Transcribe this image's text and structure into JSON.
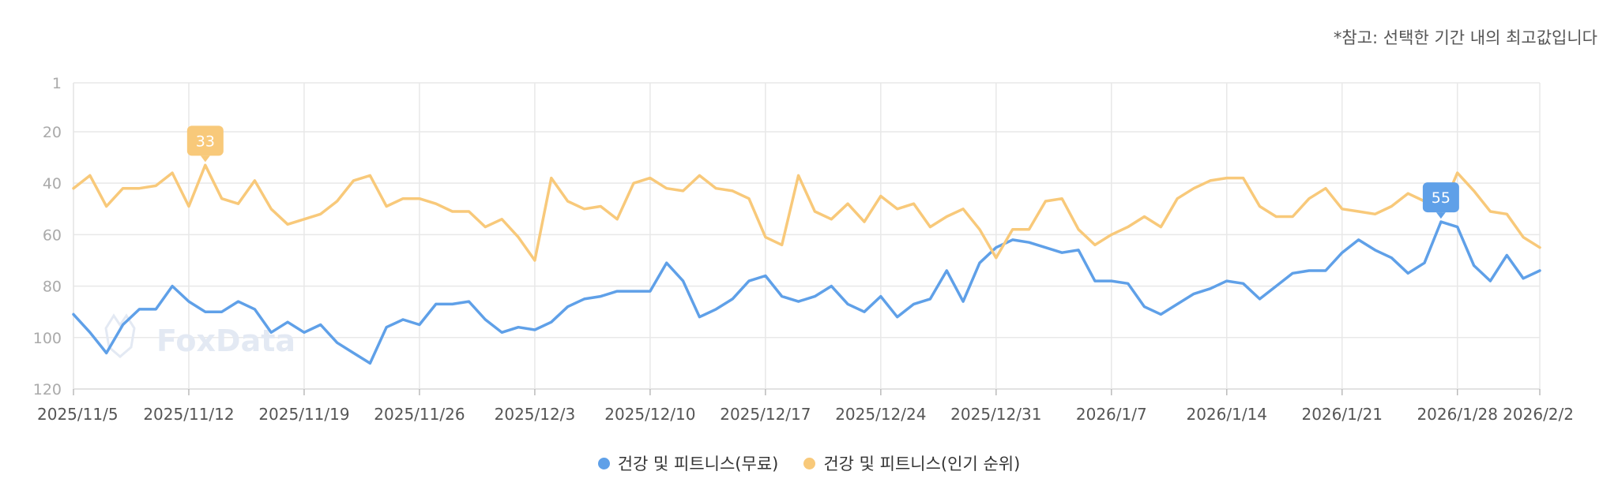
{
  "note": "*참고: 선택한 기간 내의 최고값입니다",
  "watermark": "FoxData",
  "colors": {
    "free": "#5fa0e8",
    "popular": "#f8c97a",
    "grid": "#e8e8e8"
  },
  "chart_data": {
    "type": "line",
    "title": "",
    "xlabel": "",
    "ylabel": "",
    "y_reversed": true,
    "ylim": [
      1,
      120
    ],
    "y_ticks": [
      1,
      20,
      40,
      60,
      80,
      100,
      120
    ],
    "x_ticks": [
      "2025/11/5",
      "2025/11/12",
      "2025/11/19",
      "2025/11/26",
      "2025/12/3",
      "2025/12/10",
      "2025/12/17",
      "2025/12/24",
      "2025/12/31",
      "2026/1/7",
      "2026/1/14",
      "2026/1/21",
      "2026/1/28",
      "2026/2/2"
    ],
    "x_start": "2025/11/5",
    "x_end": "2026/2/2",
    "grid": true,
    "legend_position": "bottom",
    "series": [
      {
        "name": "건강 및 피트니스(무료)",
        "color": "#5fa0e8",
        "peak_label": "55",
        "peak_index": 83,
        "values": [
          91,
          98,
          106,
          95,
          89,
          89,
          80,
          86,
          90,
          90,
          86,
          89,
          98,
          94,
          98,
          95,
          102,
          106,
          110,
          96,
          93,
          95,
          87,
          87,
          86,
          93,
          98,
          96,
          97,
          94,
          88,
          85,
          84,
          82,
          82,
          82,
          71,
          78,
          92,
          89,
          85,
          78,
          76,
          84,
          86,
          84,
          80,
          87,
          90,
          84,
          92,
          87,
          85,
          74,
          86,
          71,
          65,
          62,
          63,
          65,
          67,
          66,
          78,
          78,
          79,
          88,
          91,
          87,
          83,
          81,
          78,
          79,
          85,
          80,
          75,
          74,
          74,
          67,
          62,
          66,
          69,
          75,
          71,
          55,
          57,
          72,
          78,
          68,
          77,
          74
        ]
      },
      {
        "name": "건강 및 피트니스(인기 순위)",
        "color": "#f8c97a",
        "peak_label": "33",
        "peak_index": 8,
        "values": [
          42,
          37,
          49,
          42,
          42,
          41,
          36,
          49,
          33,
          46,
          48,
          39,
          50,
          56,
          54,
          52,
          47,
          39,
          37,
          49,
          46,
          46,
          48,
          51,
          51,
          57,
          54,
          61,
          70,
          38,
          47,
          50,
          49,
          54,
          40,
          38,
          42,
          43,
          37,
          42,
          43,
          46,
          61,
          64,
          37,
          51,
          54,
          48,
          55,
          45,
          50,
          48,
          57,
          53,
          50,
          58,
          69,
          58,
          58,
          47,
          46,
          58,
          64,
          60,
          57,
          53,
          57,
          46,
          42,
          39,
          38,
          38,
          49,
          53,
          53,
          46,
          42,
          50,
          51,
          52,
          49,
          44,
          47,
          51,
          36,
          43,
          51,
          52,
          61,
          65
        ]
      }
    ]
  }
}
